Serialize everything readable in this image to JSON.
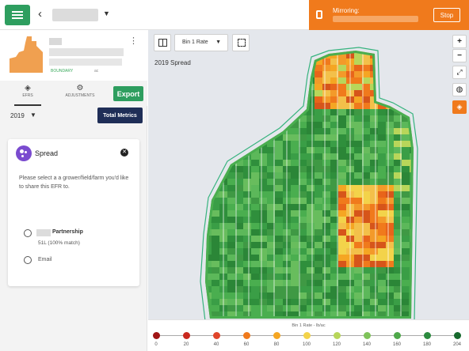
{
  "mirroring": {
    "label": "Mirroring:",
    "stop_label": "Stop"
  },
  "field": {
    "boundary_label": "BOUNDARY",
    "area_unit": "ac"
  },
  "tabs": [
    {
      "label": "EFRS"
    },
    {
      "label": "ADJUSTMENTS"
    }
  ],
  "toolbar": {
    "export_label": "Export",
    "year": "2019",
    "total_metrics_label": "Total Metrics"
  },
  "card": {
    "title": "Spread",
    "message": "Please select a a grower/field/farm you'd like to share this EFR to.",
    "option1_label": "Partnership",
    "option1_sub": "51L (100% match)",
    "option2_label": "Email"
  },
  "map": {
    "layer_select": "Bin 1 Rate",
    "spread_label": "2019 Spread"
  },
  "legend": {
    "title": "Bin 1 Rate - lb/ac",
    "stops": [
      {
        "value": "0",
        "color": "#a01515"
      },
      {
        "value": "20",
        "color": "#c9281e"
      },
      {
        "value": "40",
        "color": "#e0452a"
      },
      {
        "value": "60",
        "color": "#f07a1c"
      },
      {
        "value": "80",
        "color": "#f5a623"
      },
      {
        "value": "100",
        "color": "#f3d34a"
      },
      {
        "value": "120",
        "color": "#b8d65a"
      },
      {
        "value": "140",
        "color": "#7fc35a"
      },
      {
        "value": "160",
        "color": "#4ea84a"
      },
      {
        "value": "180",
        "color": "#2b8a3e"
      },
      {
        "value": "204",
        "color": "#17692d"
      }
    ]
  }
}
